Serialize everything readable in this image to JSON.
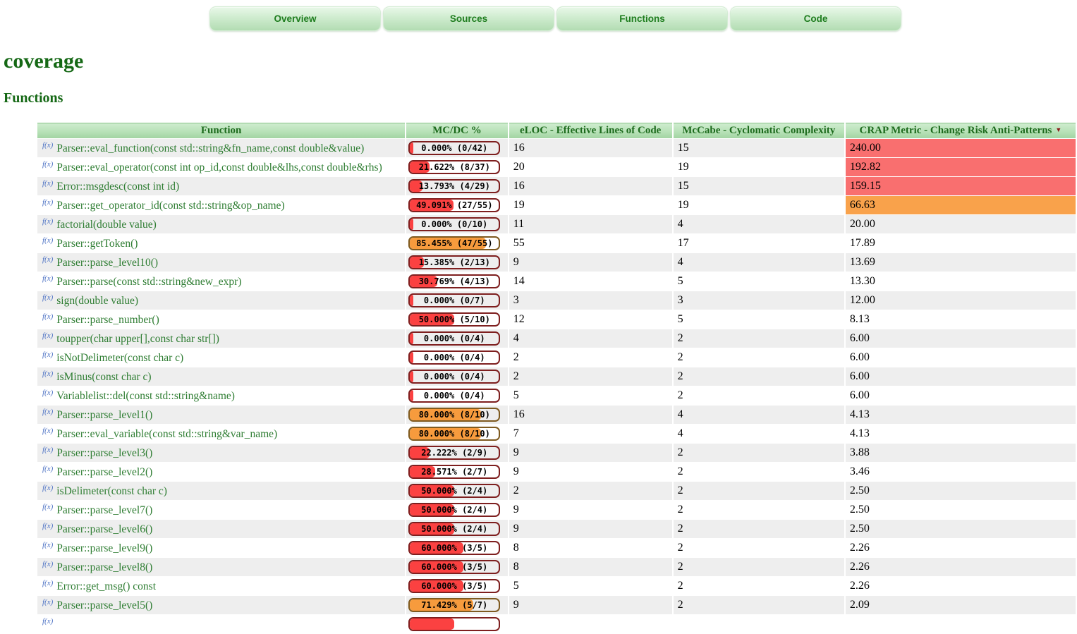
{
  "tabs": [
    {
      "label": "Overview"
    },
    {
      "label": "Sources"
    },
    {
      "label": "Functions"
    },
    {
      "label": "Code"
    }
  ],
  "page": {
    "title": "coverage",
    "section": "Functions"
  },
  "colors": {
    "heading_green": "#156815",
    "function_green": "#2e7d32",
    "bar_fill_red": "#fb4141",
    "bar_fill_orange": "#f79b3d",
    "bar_border_red": "#7e1f1f",
    "crap_cell_red": "#f96f6f",
    "crap_cell_orange": "#f9a24b",
    "row_stripe": "#eeeeee"
  },
  "table": {
    "columns": [
      "Function",
      "MC/DC %",
      "eLOC - Effective Lines of Code",
      "McCabe - Cyclomatic Complexity",
      "CRAP Metric - Change Risk Anti-Patterns"
    ],
    "sort_icon": "▼",
    "fn_icon": "f(x)",
    "rows": [
      {
        "fn": "Parser::eval_function(const std::string&fn_name,const double&value)",
        "mcdc": "0.000% (0/42)",
        "pct": 0,
        "bar": "red",
        "eloc": "16",
        "mccabe": "15",
        "crap": "240.00",
        "crap_bg": "red"
      },
      {
        "fn": "Parser::eval_operator(const int op_id,const double&lhs,const double&rhs)",
        "mcdc": "21.622% (8/37)",
        "pct": 21.622,
        "bar": "red",
        "eloc": "20",
        "mccabe": "19",
        "crap": "192.82",
        "crap_bg": "red"
      },
      {
        "fn": "Error::msgdesc(const int id)",
        "mcdc": "13.793% (4/29)",
        "pct": 13.793,
        "bar": "red",
        "eloc": "16",
        "mccabe": "15",
        "crap": "159.15",
        "crap_bg": "red"
      },
      {
        "fn": "Parser::get_operator_id(const std::string&op_name)",
        "mcdc": "49.091% (27/55)",
        "pct": 49.091,
        "bar": "red",
        "eloc": "19",
        "mccabe": "19",
        "crap": "66.63",
        "crap_bg": "orange"
      },
      {
        "fn": "factorial(double value)",
        "mcdc": "0.000% (0/10)",
        "pct": 0,
        "bar": "red",
        "eloc": "11",
        "mccabe": "4",
        "crap": "20.00",
        "crap_bg": "none"
      },
      {
        "fn": "Parser::getToken()",
        "mcdc": "85.455% (47/55)",
        "pct": 85.455,
        "bar": "orange",
        "eloc": "55",
        "mccabe": "17",
        "crap": "17.89",
        "crap_bg": "none"
      },
      {
        "fn": "Parser::parse_level10()",
        "mcdc": "15.385% (2/13)",
        "pct": 15.385,
        "bar": "red",
        "eloc": "9",
        "mccabe": "4",
        "crap": "13.69",
        "crap_bg": "none"
      },
      {
        "fn": "Parser::parse(const std::string&new_expr)",
        "mcdc": "30.769% (4/13)",
        "pct": 30.769,
        "bar": "red",
        "eloc": "14",
        "mccabe": "5",
        "crap": "13.30",
        "crap_bg": "none"
      },
      {
        "fn": "sign(double value)",
        "mcdc": "0.000% (0/7)",
        "pct": 0,
        "bar": "red",
        "eloc": "3",
        "mccabe": "3",
        "crap": "12.00",
        "crap_bg": "none"
      },
      {
        "fn": "Parser::parse_number()",
        "mcdc": "50.000% (5/10)",
        "pct": 50,
        "bar": "red",
        "eloc": "12",
        "mccabe": "5",
        "crap": "8.13",
        "crap_bg": "none"
      },
      {
        "fn": "toupper(char upper[],const char str[])",
        "mcdc": "0.000% (0/4)",
        "pct": 0,
        "bar": "red",
        "eloc": "4",
        "mccabe": "2",
        "crap": "6.00",
        "crap_bg": "none"
      },
      {
        "fn": "isNotDelimeter(const char c)",
        "mcdc": "0.000% (0/4)",
        "pct": 0,
        "bar": "red",
        "eloc": "2",
        "mccabe": "2",
        "crap": "6.00",
        "crap_bg": "none"
      },
      {
        "fn": "isMinus(const char c)",
        "mcdc": "0.000% (0/4)",
        "pct": 0,
        "bar": "red",
        "eloc": "2",
        "mccabe": "2",
        "crap": "6.00",
        "crap_bg": "none"
      },
      {
        "fn": "Variablelist::del(const std::string&name)",
        "mcdc": "0.000% (0/4)",
        "pct": 0,
        "bar": "red",
        "eloc": "5",
        "mccabe": "2",
        "crap": "6.00",
        "crap_bg": "none"
      },
      {
        "fn": "Parser::parse_level1()",
        "mcdc": "80.000% (8/10)",
        "pct": 80,
        "bar": "orange",
        "eloc": "16",
        "mccabe": "4",
        "crap": "4.13",
        "crap_bg": "none"
      },
      {
        "fn": "Parser::eval_variable(const std::string&var_name)",
        "mcdc": "80.000% (8/10)",
        "pct": 80,
        "bar": "orange",
        "eloc": "7",
        "mccabe": "4",
        "crap": "4.13",
        "crap_bg": "none"
      },
      {
        "fn": "Parser::parse_level3()",
        "mcdc": "22.222% (2/9)",
        "pct": 22.222,
        "bar": "red",
        "eloc": "9",
        "mccabe": "2",
        "crap": "3.88",
        "crap_bg": "none"
      },
      {
        "fn": "Parser::parse_level2()",
        "mcdc": "28.571% (2/7)",
        "pct": 28.571,
        "bar": "red",
        "eloc": "9",
        "mccabe": "2",
        "crap": "3.46",
        "crap_bg": "none"
      },
      {
        "fn": "isDelimeter(const char c)",
        "mcdc": "50.000% (2/4)",
        "pct": 50,
        "bar": "red",
        "eloc": "2",
        "mccabe": "2",
        "crap": "2.50",
        "crap_bg": "none"
      },
      {
        "fn": "Parser::parse_level7()",
        "mcdc": "50.000% (2/4)",
        "pct": 50,
        "bar": "red",
        "eloc": "9",
        "mccabe": "2",
        "crap": "2.50",
        "crap_bg": "none"
      },
      {
        "fn": "Parser::parse_level6()",
        "mcdc": "50.000% (2/4)",
        "pct": 50,
        "bar": "red",
        "eloc": "9",
        "mccabe": "2",
        "crap": "2.50",
        "crap_bg": "none"
      },
      {
        "fn": "Parser::parse_level9()",
        "mcdc": "60.000% (3/5)",
        "pct": 60,
        "bar": "red",
        "eloc": "8",
        "mccabe": "2",
        "crap": "2.26",
        "crap_bg": "none"
      },
      {
        "fn": "Parser::parse_level8()",
        "mcdc": "60.000% (3/5)",
        "pct": 60,
        "bar": "red",
        "eloc": "8",
        "mccabe": "2",
        "crap": "2.26",
        "crap_bg": "none"
      },
      {
        "fn": "Error::get_msg() const",
        "mcdc": "60.000% (3/5)",
        "pct": 60,
        "bar": "red",
        "eloc": "5",
        "mccabe": "2",
        "crap": "2.26",
        "crap_bg": "none"
      },
      {
        "fn": "Parser::parse_level5()",
        "mcdc": "71.429% (5/7)",
        "pct": 71.429,
        "bar": "orange",
        "eloc": "9",
        "mccabe": "2",
        "crap": "2.09",
        "crap_bg": "none"
      }
    ],
    "partial_row": {
      "fn": "",
      "mcdc": "",
      "pct": 50,
      "bar": "red",
      "eloc": "",
      "mccabe": "",
      "crap": "",
      "crap_bg": "none"
    }
  }
}
